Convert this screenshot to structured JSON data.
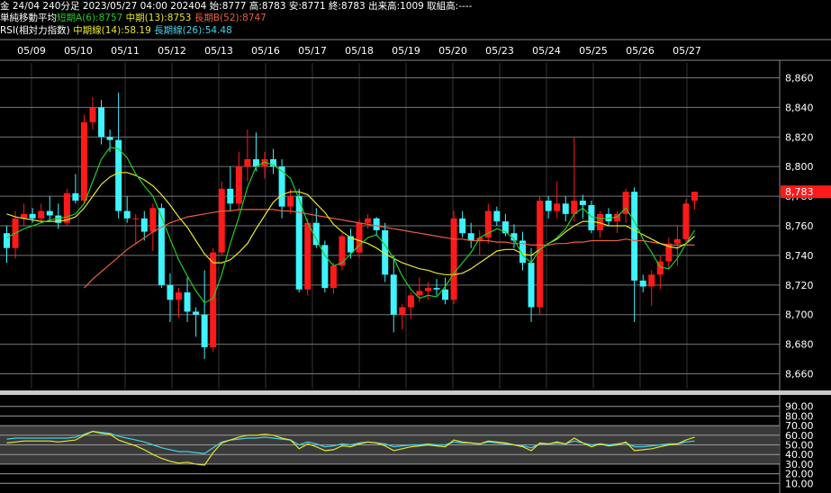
{
  "header": {
    "line1": "金 24/04 240分足 2023/05/27 04:00 202404 始:8777 高:8783 安:8771 終:8783 出来高:1009 取組高:----",
    "ma_title": "単純移動平均",
    "ma_short": "短期A(6):8757",
    "ma_mid": "中期(13):8753",
    "ma_long": "長期B(52):8747",
    "rsi_title": "RSI(相対力指数)",
    "rsi_mid": "中期線(14):58.19",
    "rsi_long": "長期線(26):54.48"
  },
  "colors": {
    "up": "#ff1a1a",
    "down": "#3ff3ff",
    "ma_short": "#22cc22",
    "ma_mid": "#e6e62e",
    "ma_long": "#e8603c",
    "rsi_mid": "#e6e62e",
    "rsi_long": "#3fd3e8",
    "current_price_bg": "#ff1a1a"
  },
  "current_price_label": "8,783",
  "chart_data": {
    "type": "candlestick",
    "x_dates": [
      "05/09",
      "05/10",
      "05/11",
      "05/12",
      "05/13",
      "05/16",
      "05/17",
      "05/18",
      "05/19",
      "05/20",
      "05/23",
      "05/24",
      "05/25",
      "05/26",
      "05/27"
    ],
    "price_axis": {
      "ylim": [
        8650,
        8870
      ],
      "ticks": [
        "8,860",
        "8,840",
        "8,820",
        "8,800",
        "8,780",
        "8,760",
        "8,740",
        "8,720",
        "8,700",
        "8,680",
        "8,660"
      ]
    },
    "rsi_axis": {
      "ylim": [
        0,
        100
      ],
      "ticks": [
        "90.00",
        "80.00",
        "70.00",
        "60.00",
        "50.00",
        "40.00",
        "30.00",
        "20.00",
        "10.00"
      ]
    },
    "candles": [
      [
        8755,
        8760,
        8735,
        8745
      ],
      [
        8745,
        8770,
        8738,
        8765
      ],
      [
        8765,
        8775,
        8760,
        8768
      ],
      [
        8768,
        8772,
        8762,
        8765
      ],
      [
        8765,
        8775,
        8762,
        8770
      ],
      [
        8770,
        8780,
        8763,
        8767
      ],
      [
        8767,
        8775,
        8758,
        8762
      ],
      [
        8762,
        8785,
        8760,
        8782
      ],
      [
        8782,
        8795,
        8775,
        8777
      ],
      [
        8777,
        8835,
        8775,
        8830
      ],
      [
        8830,
        8847,
        8825,
        8840
      ],
      [
        8840,
        8845,
        8815,
        8820
      ],
      [
        8820,
        8825,
        8810,
        8818
      ],
      [
        8818,
        8850,
        8765,
        8770
      ],
      [
        8770,
        8780,
        8762,
        8765
      ],
      [
        8765,
        8768,
        8748,
        8765
      ],
      [
        8765,
        8770,
        8750,
        8756
      ],
      [
        8756,
        8775,
        8743,
        8772
      ],
      [
        8772,
        8775,
        8718,
        8720
      ],
      [
        8720,
        8728,
        8695,
        8710
      ],
      [
        8710,
        8718,
        8698,
        8715
      ],
      [
        8715,
        8725,
        8695,
        8702
      ],
      [
        8702,
        8705,
        8685,
        8700
      ],
      [
        8700,
        8730,
        8670,
        8678
      ],
      [
        8678,
        8745,
        8675,
        8742
      ],
      [
        8742,
        8790,
        8740,
        8785
      ],
      [
        8785,
        8800,
        8770,
        8775
      ],
      [
        8775,
        8810,
        8770,
        8800
      ],
      [
        8800,
        8825,
        8790,
        8805
      ],
      [
        8805,
        8823,
        8797,
        8800
      ],
      [
        8800,
        8810,
        8792,
        8805
      ],
      [
        8805,
        8812,
        8795,
        8800
      ],
      [
        8800,
        8805,
        8765,
        8773
      ],
      [
        8773,
        8785,
        8768,
        8780
      ],
      [
        8780,
        8785,
        8715,
        8717
      ],
      [
        8717,
        8765,
        8713,
        8762
      ],
      [
        8762,
        8772,
        8745,
        8747
      ],
      [
        8747,
        8750,
        8715,
        8718
      ],
      [
        8718,
        8735,
        8714,
        8733
      ],
      [
        8733,
        8755,
        8730,
        8753
      ],
      [
        8753,
        8758,
        8738,
        8742
      ],
      [
        8742,
        8765,
        8738,
        8762
      ],
      [
        8762,
        8768,
        8758,
        8765
      ],
      [
        8765,
        8766,
        8753,
        8757
      ],
      [
        8757,
        8762,
        8722,
        8727
      ],
      [
        8727,
        8740,
        8688,
        8700
      ],
      [
        8700,
        8707,
        8690,
        8705
      ],
      [
        8705,
        8715,
        8697,
        8713
      ],
      [
        8713,
        8725,
        8708,
        8716
      ],
      [
        8716,
        8722,
        8710,
        8718
      ],
      [
        8718,
        8724,
        8713,
        8717
      ],
      [
        8717,
        8725,
        8707,
        8710
      ],
      [
        8710,
        8770,
        8707,
        8765
      ],
      [
        8765,
        8770,
        8752,
        8755
      ],
      [
        8755,
        8762,
        8745,
        8750
      ],
      [
        8750,
        8757,
        8740,
        8752
      ],
      [
        8752,
        8775,
        8748,
        8770
      ],
      [
        8770,
        8773,
        8760,
        8763
      ],
      [
        8763,
        8768,
        8753,
        8755
      ],
      [
        8755,
        8761,
        8745,
        8750
      ],
      [
        8750,
        8756,
        8730,
        8735
      ],
      [
        8735,
        8745,
        8695,
        8705
      ],
      [
        8705,
        8780,
        8700,
        8777
      ],
      [
        8777,
        8780,
        8765,
        8770
      ],
      [
        8770,
        8790,
        8765,
        8775
      ],
      [
        8775,
        8780,
        8763,
        8768
      ],
      [
        8768,
        8820,
        8763,
        8777
      ],
      [
        8777,
        8781,
        8765,
        8774
      ],
      [
        8774,
        8777,
        8755,
        8757
      ],
      [
        8757,
        8770,
        8752,
        8768
      ],
      [
        8768,
        8772,
        8760,
        8763
      ],
      [
        8763,
        8770,
        8755,
        8768
      ],
      [
        8768,
        8785,
        8762,
        8783
      ],
      [
        8783,
        8786,
        8695,
        8723
      ],
      [
        8723,
        8727,
        8715,
        8719
      ],
      [
        8719,
        8730,
        8706,
        8727
      ],
      [
        8727,
        8740,
        8717,
        8736
      ],
      [
        8736,
        8752,
        8730,
        8748
      ],
      [
        8748,
        8760,
        8733,
        8751
      ],
      [
        8751,
        8778,
        8748,
        8775
      ],
      [
        8777,
        8783,
        8771,
        8783
      ]
    ],
    "ma_short": [
      8752,
      8755,
      8758,
      8760,
      8762,
      8764,
      8765,
      8766,
      8768,
      8775,
      8790,
      8805,
      8813,
      8812,
      8806,
      8795,
      8787,
      8780,
      8766,
      8751,
      8737,
      8726,
      8716,
      8708,
      8711,
      8727,
      8748,
      8766,
      8786,
      8800,
      8803,
      8801,
      8797,
      8792,
      8778,
      8762,
      8751,
      8740,
      8733,
      8735,
      8741,
      8747,
      8752,
      8754,
      8747,
      8738,
      8726,
      8717,
      8711,
      8713,
      8712,
      8719,
      8728,
      8735,
      8742,
      8752,
      8755,
      8758,
      8756,
      8751,
      8740,
      8735,
      8744,
      8748,
      8752,
      8758,
      8768,
      8772,
      8766,
      8765,
      8765,
      8766,
      8772,
      8763,
      8751,
      8742,
      8732,
      8731,
      8738,
      8748,
      8757
    ],
    "ma_mid": [
      8768,
      8766,
      8765,
      8764,
      8763,
      8763,
      8763,
      8764,
      8766,
      8772,
      8780,
      8788,
      8793,
      8796,
      8796,
      8794,
      8791,
      8787,
      8781,
      8774,
      8766,
      8759,
      8750,
      8741,
      8735,
      8735,
      8737,
      8742,
      8748,
      8758,
      8767,
      8776,
      8781,
      8783,
      8783,
      8781,
      8775,
      8769,
      8761,
      8756,
      8752,
      8750,
      8748,
      8745,
      8741,
      8738,
      8735,
      8733,
      8731,
      8730,
      8728,
      8727,
      8727,
      8728,
      8731,
      8735,
      8739,
      8743,
      8744,
      8744,
      8741,
      8740,
      8744,
      8748,
      8751,
      8756,
      8760,
      8763,
      8763,
      8762,
      8760,
      8760,
      8760,
      8757,
      8754,
      8751,
      8748,
      8746,
      8745,
      8748,
      8753
    ],
    "ma_long": [
      null,
      null,
      null,
      null,
      null,
      null,
      null,
      null,
      null,
      8718,
      8724,
      8729,
      8734,
      8739,
      8744,
      8748,
      8752,
      8756,
      8759,
      8762,
      8764,
      8766,
      8767,
      8768,
      8769,
      8770,
      8770,
      8771,
      8771,
      8771,
      8771,
      8771,
      8770,
      8770,
      8769,
      8768,
      8767,
      8766,
      8765,
      8764,
      8763,
      8762,
      8761,
      8760,
      8759,
      8758,
      8757,
      8756,
      8755,
      8754,
      8753,
      8752,
      8751,
      8751,
      8750,
      8750,
      8750,
      8749,
      8749,
      8748,
      8748,
      8747,
      8747,
      8747,
      8748,
      8748,
      8749,
      8749,
      8750,
      8750,
      8750,
      8750,
      8751,
      8750,
      8750,
      8749,
      8748,
      8747,
      8747,
      8747,
      8747
    ],
    "rsi_mid": [
      52,
      53,
      54,
      54,
      54,
      54,
      53,
      54,
      55,
      60,
      64,
      62,
      61,
      55,
      52,
      49,
      45,
      40,
      36,
      33,
      31,
      32,
      30,
      29,
      42,
      52,
      55,
      58,
      60,
      60,
      61,
      60,
      57,
      55,
      46,
      51,
      48,
      44,
      45,
      49,
      48,
      51,
      53,
      52,
      49,
      44,
      46,
      48,
      49,
      50,
      49,
      48,
      55,
      53,
      52,
      51,
      54,
      53,
      52,
      50,
      48,
      44,
      52,
      51,
      53,
      51,
      57,
      52,
      48,
      51,
      49,
      50,
      53,
      44,
      45,
      46,
      48,
      50,
      51,
      55,
      58
    ],
    "rsi_long": [
      56,
      57,
      57,
      57,
      57,
      57,
      57,
      57,
      58,
      61,
      64,
      63,
      62,
      59,
      57,
      55,
      53,
      50,
      47,
      45,
      43,
      43,
      42,
      41,
      47,
      53,
      55,
      56,
      57,
      57,
      58,
      57,
      56,
      55,
      50,
      53,
      51,
      48,
      49,
      51,
      50,
      52,
      53,
      52,
      51,
      48,
      49,
      50,
      50,
      51,
      50,
      50,
      53,
      52,
      52,
      51,
      53,
      52,
      51,
      50,
      49,
      47,
      51,
      51,
      52,
      51,
      54,
      52,
      50,
      51,
      50,
      51,
      52,
      48,
      48,
      49,
      50,
      51,
      51,
      53,
      54
    ]
  }
}
